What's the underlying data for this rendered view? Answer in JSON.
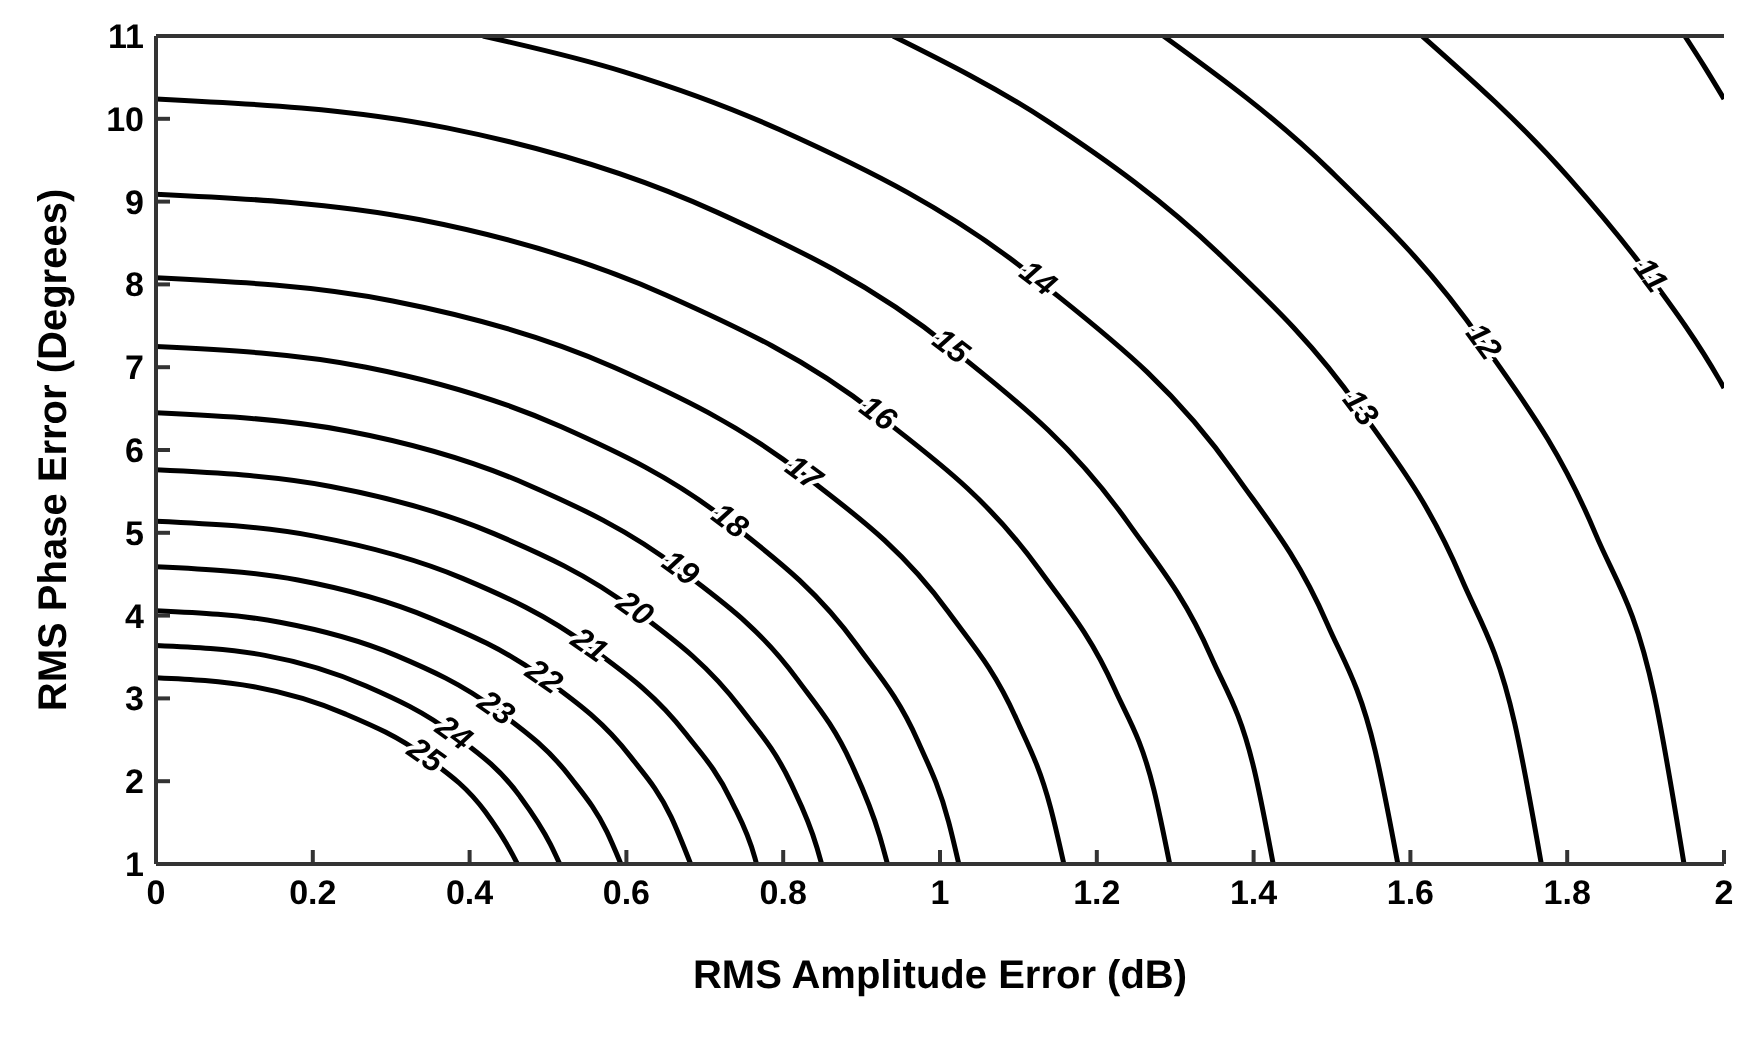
{
  "chart_data": {
    "type": "line",
    "xlabel": "RMS Amplitude Error (dB)",
    "ylabel": "RMS Phase Error (Degrees)",
    "xlim": [
      0,
      2
    ],
    "ylim": [
      1,
      11
    ],
    "xticks": [
      0,
      0.2,
      0.4,
      0.6,
      0.8,
      1,
      1.2,
      1.4,
      1.6,
      1.8,
      2
    ],
    "yticks": [
      1,
      2,
      3,
      4,
      5,
      6,
      7,
      8,
      9,
      10,
      11
    ],
    "grid": false,
    "legend": false,
    "marker": "none",
    "line_style": "solid",
    "series": [
      {
        "name": "25",
        "color": "#000000",
        "x": [
          0,
          0.125,
          0.242,
          0.343,
          0.42,
          0.455,
          0.461
        ],
        "values": [
          3.25,
          3.14,
          2.81,
          2.3,
          1.63,
          1.11,
          1
        ]
      },
      {
        "name": "24",
        "color": "#000000",
        "x": [
          0,
          0.139,
          0.268,
          0.379,
          0.464,
          0.503,
          0.515
        ],
        "values": [
          3.64,
          3.52,
          3.15,
          2.57,
          1.82,
          1.24,
          1
        ]
      },
      {
        "name": "23",
        "color": "#000000",
        "x": [
          0,
          0.158,
          0.306,
          0.433,
          0.53,
          0.575,
          0.593
        ],
        "values": [
          4.06,
          3.92,
          3.52,
          2.87,
          2.03,
          1.39,
          1
        ]
      },
      {
        "name": "22",
        "color": "#000000",
        "x": [
          0,
          0.181,
          0.35,
          0.494,
          0.605,
          0.657,
          0.682
        ],
        "values": [
          4.59,
          4.43,
          3.97,
          3.25,
          2.3,
          1.57,
          1
        ]
      },
      {
        "name": "21",
        "color": "#000000",
        "x": [
          0,
          0.202,
          0.391,
          0.552,
          0.676,
          0.734,
          0.764,
          0.766
        ],
        "values": [
          5.14,
          4.96,
          4.45,
          3.63,
          2.57,
          1.76,
          1.07,
          1
        ]
      },
      {
        "name": "20",
        "color": "#000000",
        "x": [
          0,
          0.223,
          0.431,
          0.61,
          0.746,
          0.81,
          0.843,
          0.849
        ],
        "values": [
          5.76,
          5.56,
          4.99,
          4.07,
          2.88,
          1.97,
          1.2,
          1
        ]
      },
      {
        "name": "19",
        "color": "#000000",
        "x": [
          0,
          0.244,
          0.472,
          0.668,
          0.818,
          0.887,
          0.923,
          0.933
        ],
        "values": [
          6.45,
          6.23,
          5.59,
          4.56,
          3.23,
          2.21,
          1.34,
          1
        ]
      },
      {
        "name": "18",
        "color": "#000000",
        "x": [
          0,
          0.268,
          0.517,
          0.731,
          0.895,
          0.972,
          1.011,
          1.024
        ],
        "values": [
          7.25,
          7,
          6.28,
          5.13,
          3.63,
          2.48,
          1.51,
          1
        ]
      },
      {
        "name": "17",
        "color": "#000000",
        "x": [
          0,
          0.302,
          0.584,
          0.825,
          1.011,
          1.097,
          1.141,
          1.158
        ],
        "values": [
          8.08,
          7.8,
          7,
          5.71,
          4.04,
          2.76,
          1.68,
          1
        ]
      },
      {
        "name": "16",
        "color": "#000000",
        "x": [
          0,
          0.337,
          0.651,
          0.92,
          1.127,
          1.223,
          1.273,
          1.293
        ],
        "values": [
          9.09,
          8.78,
          7.87,
          6.43,
          4.55,
          3.11,
          1.89,
          1
        ]
      },
      {
        "name": "15",
        "color": "#000000",
        "x": [
          0,
          0.371,
          0.716,
          1.013,
          1.24,
          1.346,
          1.401,
          1.425
        ],
        "values": [
          10.24,
          9.89,
          8.87,
          7.24,
          5.12,
          3.5,
          2.13,
          1
        ]
      },
      {
        "name": "14",
        "color": "#000000",
        "x": [
          0.417,
          0.596,
          0.795,
          1.124,
          1.377,
          1.494,
          1.555,
          1.584
        ],
        "values": [
          11,
          10.57,
          9.87,
          8.06,
          5.7,
          3.9,
          2.37,
          1
        ]
      },
      {
        "name": "13",
        "color": "#000000",
        "x": [
          0.94,
          1.139,
          1.357,
          1.535,
          1.665,
          1.733,
          1.767
        ],
        "values": [
          11,
          9.96,
          8.36,
          6.5,
          4.45,
          2.7,
          1
        ]
      },
      {
        "name": "12",
        "color": "#000000",
        "x": [
          1.285,
          1.497,
          1.692,
          1.836,
          1.911,
          1.949
        ],
        "values": [
          11,
          9.38,
          7.3,
          4.99,
          3.04,
          1
        ]
      },
      {
        "name": "11",
        "color": "#000000",
        "x": [
          1.615,
          1.802,
          1.905,
          1.994,
          2
        ],
        "values": [
          11,
          9.29,
          8.1,
          6.85,
          6.75
        ]
      },
      {
        "color": "#000000",
        "x": [
          1.95,
          1.975,
          2
        ],
        "values": [
          11,
          10.63,
          10.24
        ]
      }
    ]
  }
}
